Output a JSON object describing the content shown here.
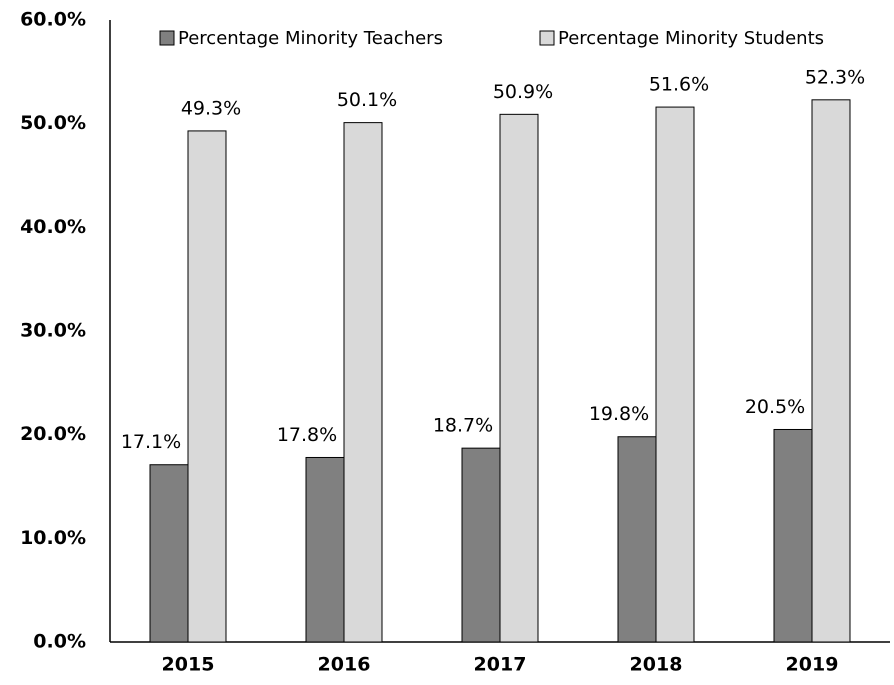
{
  "chart_data": {
    "type": "bar",
    "categories": [
      "2015",
      "2016",
      "2017",
      "2018",
      "2019"
    ],
    "series": [
      {
        "name": "Percentage Minority Teachers",
        "color": "#808080",
        "values": [
          17.1,
          17.8,
          18.7,
          19.8,
          20.5
        ],
        "value_labels": [
          "17.1%",
          "17.8%",
          "18.7%",
          "19.8%",
          "20.5%"
        ]
      },
      {
        "name": "Percentage Minority Students",
        "color": "#d9d9d9",
        "values": [
          49.3,
          50.1,
          50.9,
          51.6,
          52.3
        ],
        "value_labels": [
          "49.3%",
          "50.1%",
          "50.9%",
          "51.6%",
          "52.3%"
        ]
      }
    ],
    "ylim": [
      0,
      60
    ],
    "yticks": [
      {
        "value": 0,
        "label": "0.0%"
      },
      {
        "value": 10,
        "label": "10.0%"
      },
      {
        "value": 20,
        "label": "20.0%"
      },
      {
        "value": 30,
        "label": "30.0%"
      },
      {
        "value": 40,
        "label": "40.0%"
      },
      {
        "value": 50,
        "label": "50.0%"
      },
      {
        "value": 60,
        "label": "60.0%"
      }
    ],
    "grid": false,
    "legend": "top"
  }
}
